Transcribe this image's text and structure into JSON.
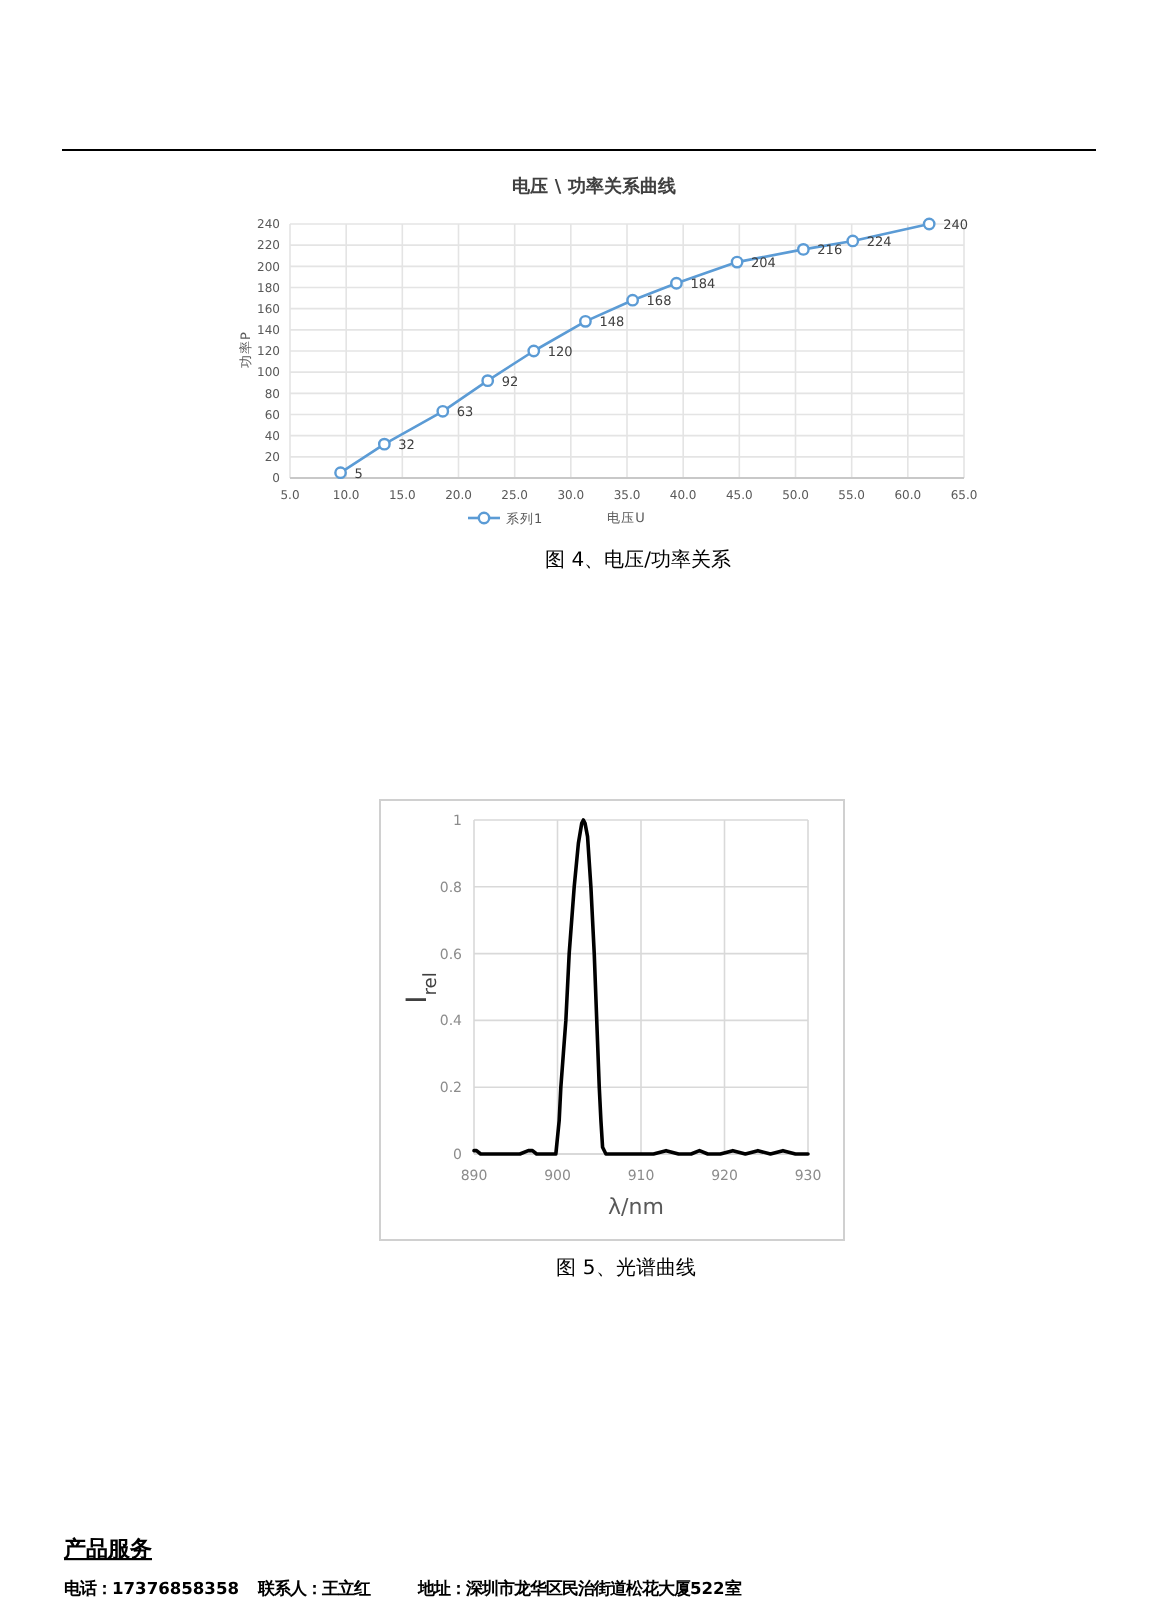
{
  "chart_data": [
    {
      "type": "line",
      "title": "电压 \\ 功率关系曲线",
      "xlabel": "电压U",
      "ylabel": "功率P",
      "x": [
        9.5,
        13.4,
        18.6,
        22.6,
        26.7,
        31.3,
        35.5,
        39.4,
        44.8,
        50.7,
        55.1,
        61.9
      ],
      "series": [
        {
          "name": "系列1",
          "color": "#5b9bd5",
          "values": [
            5,
            32,
            63,
            92,
            120,
            148,
            168,
            184,
            204,
            216,
            224,
            240
          ]
        }
      ],
      "xlim": [
        5,
        65
      ],
      "xticks": [
        {
          "value": 5,
          "label": "5.0"
        },
        {
          "value": 10,
          "label": "10.0"
        },
        {
          "value": 15,
          "label": "15.0"
        },
        {
          "value": 20,
          "label": "20.0"
        },
        {
          "value": 25,
          "label": "25.0"
        },
        {
          "value": 30,
          "label": "30.0"
        },
        {
          "value": 35,
          "label": "35.0"
        },
        {
          "value": 40,
          "label": "40.0"
        },
        {
          "value": 45,
          "label": "45.0"
        },
        {
          "value": 50,
          "label": "50.0"
        },
        {
          "value": 55,
          "label": "55.0"
        },
        {
          "value": 60,
          "label": "60.0"
        },
        {
          "value": 65,
          "label": "65.0"
        }
      ],
      "ylim": [
        0,
        240
      ],
      "yticks": [
        0,
        20,
        40,
        60,
        80,
        100,
        120,
        140,
        160,
        180,
        200,
        220,
        240
      ],
      "grid": true,
      "legend": "bottom",
      "marker": "circle",
      "data_labels": true,
      "annotations": [
        "图 4、电压/功率关系"
      ]
    },
    {
      "type": "line",
      "xlabel": "λ/nm",
      "ylabel": "I$_{rel}$",
      "x": [
        890,
        890.3,
        890.8,
        891.5,
        892.5,
        893.5,
        894.5,
        895.5,
        896.5,
        897,
        897.5,
        898.5,
        899.5,
        899.8,
        900.2,
        900.4,
        900.7,
        901.0,
        901.4,
        901.7,
        902.0,
        902.5,
        902.9,
        903.1,
        903.3,
        903.6,
        904.0,
        904.4,
        904.7,
        905.0,
        905.2,
        905.4,
        905.8,
        906.5,
        907.5,
        908.5,
        910,
        911.5,
        913,
        914.5,
        916,
        917,
        918,
        919.5,
        921,
        922.5,
        924,
        925.5,
        927,
        928.5,
        930
      ],
      "series": [
        {
          "color": "#000000",
          "values": [
            0.01,
            0.01,
            0,
            0,
            0,
            0,
            0,
            0,
            0.01,
            0.01,
            0,
            0,
            0,
            0,
            0.1,
            0.2,
            0.3,
            0.4,
            0.6,
            0.7,
            0.8,
            0.93,
            0.99,
            1.0,
            0.99,
            0.95,
            0.8,
            0.6,
            0.4,
            0.2,
            0.1,
            0.02,
            0,
            0,
            0,
            0,
            0,
            0,
            0.01,
            0,
            0,
            0.01,
            0,
            0,
            0.01,
            0,
            0.01,
            0,
            0.01,
            0,
            0
          ]
        }
      ],
      "xlim": [
        890,
        930
      ],
      "xticks": [
        890,
        900,
        910,
        920,
        930
      ],
      "ylim": [
        0,
        1
      ],
      "yticks": [
        0,
        0.2,
        0.4,
        0.6,
        0.8,
        1
      ],
      "grid": true,
      "marker": "none",
      "annotations": [
        "图 5、光谱曲线",
        "产品服务",
        "电话：17376858358",
        "联系人：王立红",
        "地址：深圳市龙华区民治街道松花大厦522室"
      ]
    }
  ]
}
